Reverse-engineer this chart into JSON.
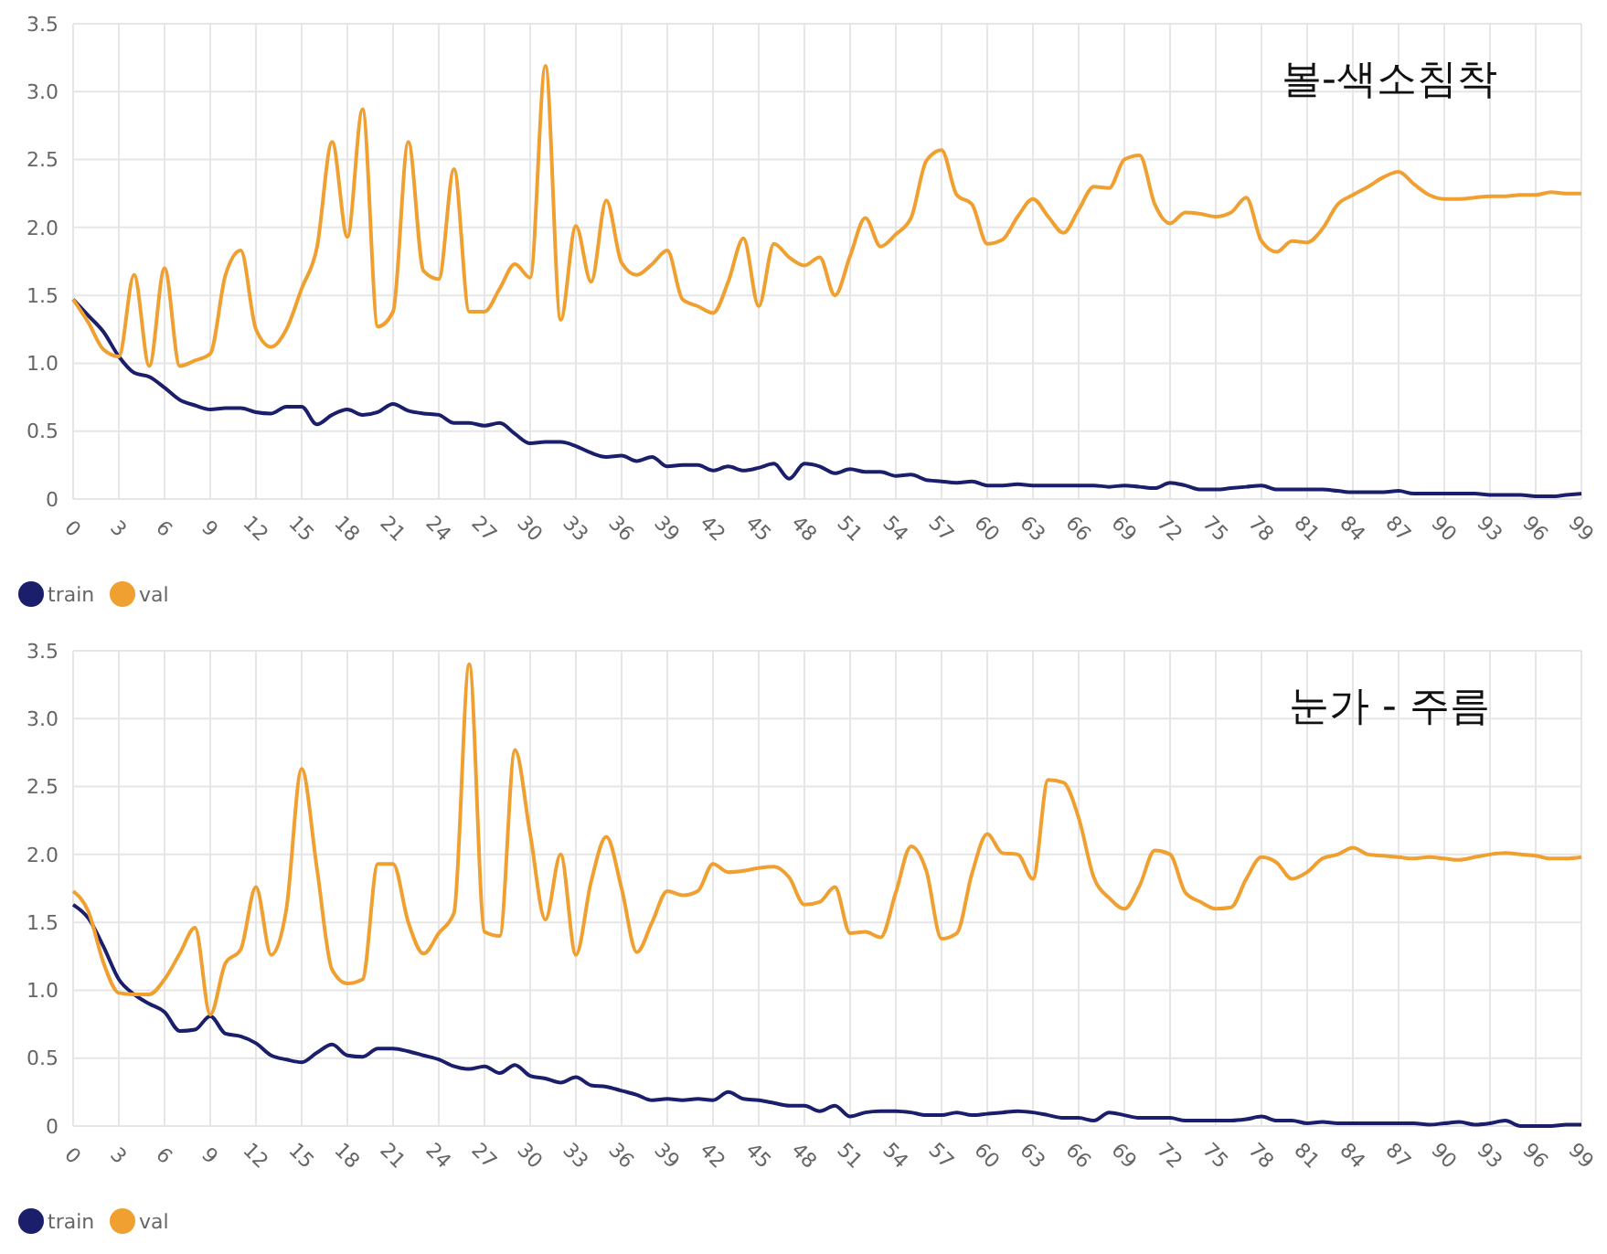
{
  "chart_data": [
    {
      "type": "line",
      "title": "볼-색소침착",
      "xlim": [
        0,
        99
      ],
      "ylim": [
        0,
        3.5
      ],
      "xticks": [
        0,
        3,
        6,
        9,
        12,
        15,
        18,
        21,
        24,
        27,
        30,
        33,
        36,
        39,
        42,
        45,
        48,
        51,
        54,
        57,
        60,
        63,
        66,
        69,
        72,
        75,
        78,
        81,
        84,
        87,
        90,
        93,
        96,
        99
      ],
      "yticks": [
        0,
        0.5,
        {
          "value": 1,
          "label": "1.0"
        },
        1.5,
        {
          "value": 2,
          "label": "2.0"
        },
        2.5,
        {
          "value": 3,
          "label": "3.0"
        },
        3.5
      ],
      "grid": true,
      "legend": "bottom left",
      "x": [
        0,
        1,
        2,
        3,
        4,
        5,
        6,
        7,
        8,
        9,
        10,
        11,
        12,
        13,
        14,
        15,
        16,
        17,
        18,
        19,
        20,
        21,
        22,
        23,
        24,
        25,
        26,
        27,
        28,
        29,
        30,
        31,
        32,
        33,
        34,
        35,
        36,
        37,
        38,
        39,
        40,
        41,
        42,
        43,
        44,
        45,
        46,
        47,
        48,
        49,
        50,
        51,
        52,
        53,
        54,
        55,
        56,
        57,
        58,
        59,
        60,
        61,
        62,
        63,
        64,
        65,
        66,
        67,
        68,
        69,
        70,
        71,
        72,
        73,
        74,
        75,
        76,
        77,
        78,
        79,
        80,
        81,
        82,
        83,
        84,
        85,
        86,
        87,
        88,
        89,
        90,
        91,
        92,
        93,
        94,
        95,
        96,
        97,
        98,
        99
      ],
      "series": [
        {
          "name": "train",
          "color": "#1b1f6b",
          "values": [
            1.47,
            1.35,
            1.23,
            1.05,
            0.93,
            0.9,
            0.82,
            0.73,
            0.69,
            0.66,
            0.67,
            0.67,
            0.64,
            0.63,
            0.68,
            0.68,
            0.55,
            0.62,
            0.66,
            0.62,
            0.64,
            0.7,
            0.65,
            0.63,
            0.62,
            0.56,
            0.56,
            0.54,
            0.56,
            0.48,
            0.41,
            0.42,
            0.42,
            0.39,
            0.34,
            0.31,
            0.32,
            0.28,
            0.31,
            0.24,
            0.25,
            0.25,
            0.21,
            0.24,
            0.21,
            0.23,
            0.26,
            0.15,
            0.26,
            0.24,
            0.19,
            0.22,
            0.2,
            0.2,
            0.17,
            0.18,
            0.14,
            0.13,
            0.12,
            0.13,
            0.1,
            0.1,
            0.11,
            0.1,
            0.1,
            0.1,
            0.1,
            0.1,
            0.09,
            0.1,
            0.09,
            0.08,
            0.12,
            0.1,
            0.07,
            0.07,
            0.08,
            0.09,
            0.1,
            0.07,
            0.07,
            0.07,
            0.07,
            0.06,
            0.05,
            0.05,
            0.05,
            0.06,
            0.04,
            0.04,
            0.04,
            0.04,
            0.04,
            0.03,
            0.03,
            0.03,
            0.02,
            0.02,
            0.03,
            0.04
          ]
        },
        {
          "name": "val",
          "color": "#f0a030",
          "values": [
            1.47,
            1.3,
            1.1,
            1.05,
            1.65,
            0.98,
            1.7,
            0.98,
            1.02,
            1.07,
            1.65,
            1.83,
            1.25,
            1.12,
            1.25,
            1.55,
            1.85,
            2.63,
            1.93,
            2.87,
            1.27,
            1.38,
            2.63,
            1.68,
            1.62,
            2.43,
            1.38,
            1.38,
            1.55,
            1.73,
            1.63,
            3.19,
            1.32,
            2.01,
            1.6,
            2.2,
            1.74,
            1.65,
            1.73,
            1.83,
            1.47,
            1.42,
            1.37,
            1.6,
            1.92,
            1.42,
            1.88,
            1.78,
            1.72,
            1.78,
            1.5,
            1.79,
            2.07,
            1.86,
            1.95,
            2.07,
            2.49,
            2.57,
            2.24,
            2.17,
            1.88,
            1.91,
            2.08,
            2.21,
            2.08,
            1.96,
            2.13,
            2.3,
            2.29,
            2.5,
            2.53,
            2.17,
            2.03,
            2.11,
            2.1,
            2.08,
            2.11,
            2.22,
            1.9,
            1.82,
            1.9,
            1.89,
            1.99,
            2.17,
            2.24,
            2.3,
            2.37,
            2.41,
            2.32,
            2.24,
            2.21,
            2.21,
            2.22,
            2.23,
            2.23,
            2.24,
            2.24,
            2.26,
            2.25,
            2.25
          ]
        }
      ]
    },
    {
      "type": "line",
      "title": "눈가 - 주름",
      "xlim": [
        0,
        99
      ],
      "ylim": [
        0,
        3.5
      ],
      "xticks": [
        0,
        3,
        6,
        9,
        12,
        15,
        18,
        21,
        24,
        27,
        30,
        33,
        36,
        39,
        42,
        45,
        48,
        51,
        54,
        57,
        60,
        63,
        66,
        69,
        72,
        75,
        78,
        81,
        84,
        87,
        90,
        93,
        96,
        99
      ],
      "yticks": [
        0,
        0.5,
        {
          "value": 1,
          "label": "1.0"
        },
        1.5,
        {
          "value": 2,
          "label": "2.0"
        },
        2.5,
        {
          "value": 3,
          "label": "3.0"
        },
        3.5
      ],
      "grid": true,
      "legend": "bottom left",
      "x": [
        0,
        1,
        2,
        3,
        4,
        5,
        6,
        7,
        8,
        9,
        10,
        11,
        12,
        13,
        14,
        15,
        16,
        17,
        18,
        19,
        20,
        21,
        22,
        23,
        24,
        25,
        26,
        27,
        28,
        29,
        30,
        31,
        32,
        33,
        34,
        35,
        36,
        37,
        38,
        39,
        40,
        41,
        42,
        43,
        44,
        45,
        46,
        47,
        48,
        49,
        50,
        51,
        52,
        53,
        54,
        55,
        56,
        57,
        58,
        59,
        60,
        61,
        62,
        63,
        64,
        65,
        66,
        67,
        68,
        69,
        70,
        71,
        72,
        73,
        74,
        75,
        76,
        77,
        78,
        79,
        80,
        81,
        82,
        83,
        84,
        85,
        86,
        87,
        88,
        89,
        90,
        91,
        92,
        93,
        94,
        95,
        96,
        97,
        98,
        99
      ],
      "series": [
        {
          "name": "train",
          "color": "#1b1f6b",
          "values": [
            1.63,
            1.53,
            1.32,
            1.08,
            0.97,
            0.9,
            0.84,
            0.7,
            0.71,
            0.81,
            0.68,
            0.66,
            0.61,
            0.52,
            0.49,
            0.47,
            0.54,
            0.6,
            0.52,
            0.51,
            0.57,
            0.57,
            0.55,
            0.52,
            0.49,
            0.44,
            0.42,
            0.44,
            0.39,
            0.45,
            0.37,
            0.35,
            0.32,
            0.36,
            0.3,
            0.29,
            0.26,
            0.23,
            0.19,
            0.2,
            0.19,
            0.2,
            0.19,
            0.25,
            0.2,
            0.19,
            0.17,
            0.15,
            0.15,
            0.11,
            0.15,
            0.07,
            0.1,
            0.11,
            0.11,
            0.1,
            0.08,
            0.08,
            0.1,
            0.08,
            0.09,
            0.1,
            0.11,
            0.1,
            0.08,
            0.06,
            0.06,
            0.04,
            0.1,
            0.08,
            0.06,
            0.06,
            0.06,
            0.04,
            0.04,
            0.04,
            0.04,
            0.05,
            0.07,
            0.04,
            0.04,
            0.02,
            0.03,
            0.02,
            0.02,
            0.02,
            0.02,
            0.02,
            0.02,
            0.01,
            0.02,
            0.03,
            0.01,
            0.02,
            0.04,
            0.0,
            0.0,
            0.0,
            0.01,
            0.01
          ]
        },
        {
          "name": "val",
          "color": "#f0a030",
          "values": [
            1.73,
            1.58,
            1.2,
            0.98,
            0.97,
            0.97,
            1.08,
            1.27,
            1.46,
            0.82,
            1.2,
            1.3,
            1.76,
            1.26,
            1.6,
            2.63,
            1.9,
            1.15,
            1.05,
            1.08,
            1.93,
            1.93,
            1.5,
            1.27,
            1.42,
            1.57,
            3.4,
            1.43,
            1.4,
            2.77,
            2.15,
            1.52,
            2.0,
            1.26,
            1.8,
            2.13,
            1.75,
            1.28,
            1.5,
            1.73,
            1.7,
            1.73,
            1.93,
            1.87,
            1.88,
            1.9,
            1.91,
            1.83,
            1.63,
            1.65,
            1.76,
            1.42,
            1.43,
            1.39,
            1.72,
            2.06,
            1.88,
            1.38,
            1.42,
            1.86,
            2.15,
            2.01,
            2.0,
            1.82,
            2.55,
            2.53,
            2.27,
            1.83,
            1.68,
            1.6,
            1.77,
            2.03,
            2.0,
            1.72,
            1.65,
            1.6,
            1.61,
            1.82,
            1.98,
            1.94,
            1.82,
            1.87,
            1.97,
            2.0,
            2.05,
            2.0,
            1.99,
            1.98,
            1.97,
            1.98,
            1.97,
            1.96,
            1.98,
            2.0,
            2.01,
            2.0,
            1.99,
            1.97,
            1.97,
            1.98
          ]
        }
      ]
    }
  ]
}
